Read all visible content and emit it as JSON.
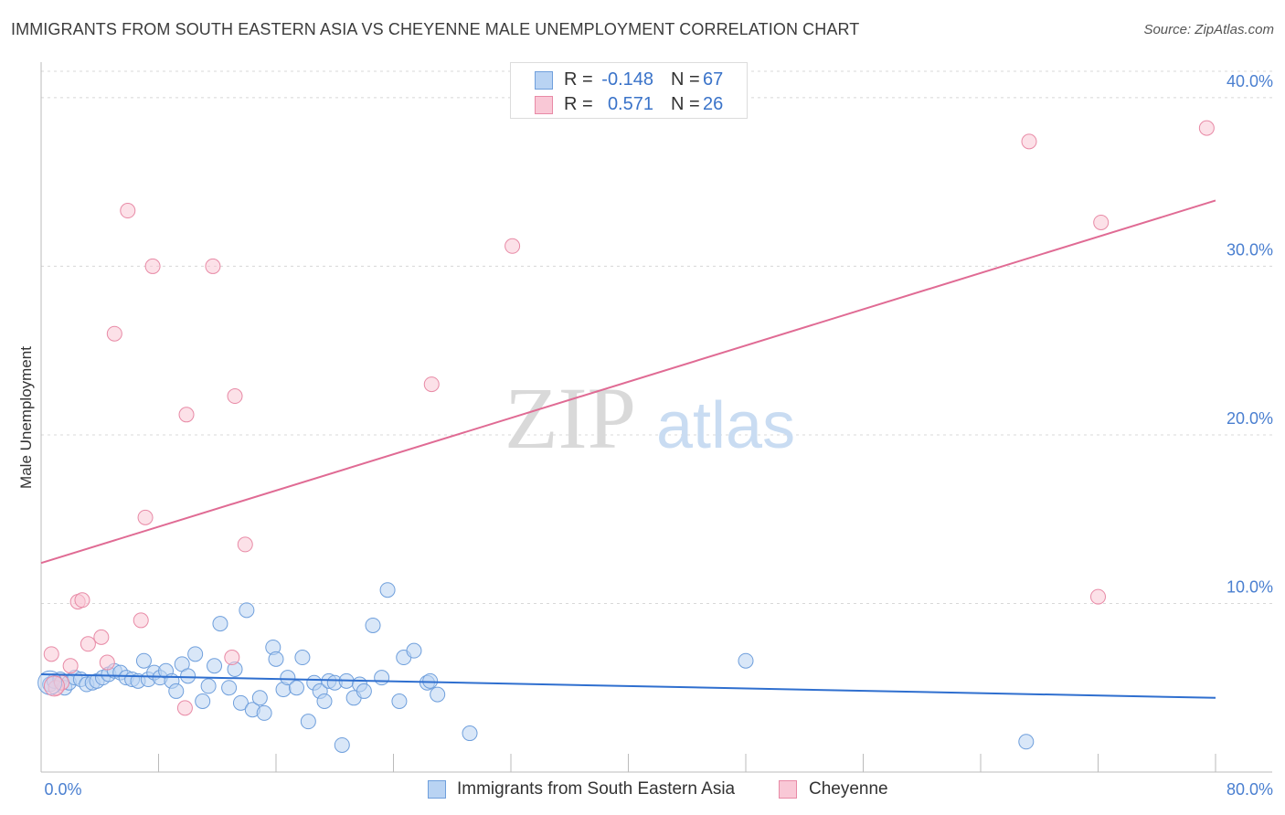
{
  "header": {
    "title": "IMMIGRANTS FROM SOUTH EASTERN ASIA VS CHEYENNE MALE UNEMPLOYMENT CORRELATION CHART",
    "source": "Source: ZipAtlas.com"
  },
  "watermark": {
    "zip": "ZIP",
    "atlas": "atlas"
  },
  "legend": {
    "r_label": "R =",
    "n_label": "N =",
    "series": [
      {
        "name": "Immigrants from South Eastern Asia",
        "r": "-0.148",
        "n": "67",
        "fill": "#b9d3f3",
        "stroke": "#6f9fdc"
      },
      {
        "name": "Cheyenne",
        "r": "0.571",
        "n": "26",
        "fill": "#f9c8d6",
        "stroke": "#e88aa6"
      }
    ]
  },
  "chart_data": {
    "type": "scatter",
    "title": "IMMIGRANTS FROM SOUTH EASTERN ASIA VS CHEYENNE MALE UNEMPLOYMENT CORRELATION CHART",
    "xlabel": "",
    "ylabel": "Male Unemployment",
    "xlim": [
      0,
      80
    ],
    "ylim": [
      0,
      42
    ],
    "x_tick_labels": [
      "0.0%",
      "80.0%"
    ],
    "y_ticks": [
      10,
      20,
      30,
      40
    ],
    "y_tick_labels": [
      "10.0%",
      "20.0%",
      "30.0%",
      "40.0%"
    ],
    "grid": true,
    "legend_position": "top-center",
    "colors": {
      "blue_line": "#2f6fcf",
      "pink_line": "#e06b94",
      "tick_label": "#4a7fd0"
    },
    "series": [
      {
        "name": "Immigrants from South Eastern Asia",
        "color": "#6f9fdc",
        "trend": {
          "x": [
            0,
            80
          ],
          "y": [
            5.8,
            4.4
          ]
        },
        "points": [
          [
            0.6,
            5.2
          ],
          [
            0.9,
            5.4
          ],
          [
            1.3,
            5.5
          ],
          [
            1.6,
            5.0
          ],
          [
            1.9,
            5.3
          ],
          [
            2.3,
            5.6
          ],
          [
            2.7,
            5.5
          ],
          [
            3.1,
            5.2
          ],
          [
            3.5,
            5.3
          ],
          [
            3.8,
            5.4
          ],
          [
            4.2,
            5.6
          ],
          [
            4.6,
            5.8
          ],
          [
            5.0,
            6.0
          ],
          [
            5.4,
            5.9
          ],
          [
            5.8,
            5.6
          ],
          [
            6.2,
            5.5
          ],
          [
            6.6,
            5.4
          ],
          [
            7.0,
            6.6
          ],
          [
            7.3,
            5.5
          ],
          [
            7.7,
            5.9
          ],
          [
            8.1,
            5.6
          ],
          [
            8.5,
            6.0
          ],
          [
            8.9,
            5.4
          ],
          [
            9.2,
            4.8
          ],
          [
            9.6,
            6.4
          ],
          [
            10.0,
            5.7
          ],
          [
            10.5,
            7.0
          ],
          [
            11.0,
            4.2
          ],
          [
            11.4,
            5.1
          ],
          [
            11.8,
            6.3
          ],
          [
            12.2,
            8.8
          ],
          [
            12.8,
            5.0
          ],
          [
            13.2,
            6.1
          ],
          [
            13.6,
            4.1
          ],
          [
            14.0,
            9.6
          ],
          [
            14.4,
            3.7
          ],
          [
            14.9,
            4.4
          ],
          [
            15.2,
            3.5
          ],
          [
            15.8,
            7.4
          ],
          [
            16.0,
            6.7
          ],
          [
            16.5,
            4.9
          ],
          [
            16.8,
            5.6
          ],
          [
            17.4,
            5.0
          ],
          [
            17.8,
            6.8
          ],
          [
            18.2,
            3.0
          ],
          [
            18.6,
            5.3
          ],
          [
            19.0,
            4.8
          ],
          [
            19.3,
            4.2
          ],
          [
            19.6,
            5.4
          ],
          [
            20.0,
            5.3
          ],
          [
            20.5,
            1.6
          ],
          [
            20.8,
            5.4
          ],
          [
            21.3,
            4.4
          ],
          [
            21.7,
            5.2
          ],
          [
            22.0,
            4.8
          ],
          [
            22.6,
            8.7
          ],
          [
            23.2,
            5.6
          ],
          [
            23.6,
            10.8
          ],
          [
            24.4,
            4.2
          ],
          [
            24.7,
            6.8
          ],
          [
            25.4,
            7.2
          ],
          [
            26.3,
            5.3
          ],
          [
            26.5,
            5.4
          ],
          [
            27.0,
            4.6
          ],
          [
            29.2,
            2.3
          ],
          [
            48.0,
            6.6
          ],
          [
            67.1,
            1.8
          ]
        ]
      },
      {
        "name": "Cheyenne",
        "color": "#e88aa6",
        "trend": {
          "x": [
            0,
            80
          ],
          "y": [
            12.4,
            33.9
          ]
        },
        "points": [
          [
            0.7,
            7.0
          ],
          [
            1.0,
            5.0
          ],
          [
            1.4,
            5.3
          ],
          [
            2.0,
            6.3
          ],
          [
            2.5,
            10.1
          ],
          [
            2.8,
            10.2
          ],
          [
            3.2,
            7.6
          ],
          [
            4.1,
            8.0
          ],
          [
            4.5,
            6.5
          ],
          [
            5.0,
            26.0
          ],
          [
            5.9,
            33.3
          ],
          [
            6.8,
            9.0
          ],
          [
            7.1,
            15.1
          ],
          [
            7.6,
            30.0
          ],
          [
            9.8,
            3.8
          ],
          [
            9.9,
            21.2
          ],
          [
            11.7,
            30.0
          ],
          [
            13.0,
            6.8
          ],
          [
            13.2,
            22.3
          ],
          [
            13.9,
            13.5
          ],
          [
            26.6,
            23.0
          ],
          [
            32.1,
            31.2
          ],
          [
            67.3,
            37.4
          ],
          [
            72.0,
            10.4
          ],
          [
            72.2,
            32.6
          ],
          [
            79.4,
            38.2
          ]
        ]
      }
    ]
  }
}
